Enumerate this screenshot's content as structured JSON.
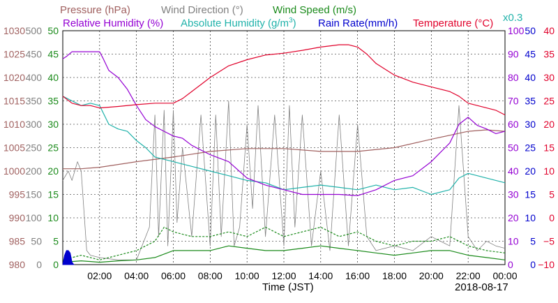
{
  "chart_data": {
    "type": "line",
    "date": "2018-08-17",
    "x_label": "Time (JST)",
    "x_range": [
      "00:00",
      "24:00"
    ],
    "x_ticks": [
      "02:00",
      "04:00",
      "06:00",
      "08:00",
      "10:00",
      "12:00",
      "14:00",
      "16:00",
      "18:00",
      "20:00",
      "22:00",
      "00:00"
    ],
    "grid": true,
    "axes": {
      "pressure": {
        "label": "Pressure (hPa)",
        "range": [
          980,
          1030
        ],
        "ticks": [
          "1030",
          "1025",
          "1020",
          "1015",
          "1010",
          "1005",
          "1000",
          "995",
          "990",
          "985",
          "980"
        ],
        "color": "#a0605f"
      },
      "wind_direction": {
        "label": "Wind Direction (°)",
        "range": [
          0,
          500
        ],
        "ticks": [
          "500",
          "450",
          "400",
          "350",
          "300",
          "250",
          "200",
          "150",
          "100",
          "50",
          "0"
        ],
        "color": "#808080"
      },
      "wind_speed": {
        "label": "Wind Speed (m/s)",
        "range": [
          0,
          50
        ],
        "ticks": [
          "50",
          "45",
          "40",
          "35",
          "30",
          "25",
          "20",
          "15",
          "10",
          "5",
          "0"
        ],
        "color": "#1a8a1a"
      },
      "humidity": {
        "label": "Relative Humidity (%)",
        "range": [
          0,
          100
        ],
        "ticks": [
          "100",
          "90",
          "80",
          "70",
          "60",
          "50",
          "40",
          "30",
          "20",
          "10",
          "0"
        ],
        "color": "#9400d3"
      },
      "abs_humidity": {
        "label": "Absolute Humidity (g/m",
        "superscript": "3",
        "close": ")",
        "scale_note": "x0.3",
        "color": "#20b2aa"
      },
      "rain_rate": {
        "label": "Rain Rate(mm/h)",
        "range": [
          0,
          50
        ],
        "ticks": [
          "50",
          "45",
          "40",
          "35",
          "30",
          "25",
          "20",
          "15",
          "10",
          "5",
          "0"
        ],
        "color": "#0000cd"
      },
      "temperature": {
        "label": "Temperature (°C)",
        "range": [
          -10,
          40
        ],
        "ticks": [
          "40",
          "35",
          "30",
          "25",
          "20",
          "15",
          "10",
          "5",
          "0",
          "−5",
          "−10"
        ],
        "color": "#e0002a"
      }
    },
    "series": [
      {
        "name": "Temperature (°C)",
        "key": "temperature",
        "axis": "temperature",
        "color": "#e0002a",
        "x": [
          0,
          0.5,
          1,
          1.5,
          2,
          3,
          4,
          5,
          6,
          6.5,
          7,
          7.5,
          8,
          9,
          10,
          11,
          12,
          13,
          14,
          15,
          15.5,
          16,
          16.5,
          17,
          18,
          19,
          20,
          21,
          21.5,
          22,
          22.5,
          23,
          23.5,
          24
        ],
        "y": [
          26,
          24.5,
          24,
          24,
          23.5,
          23.8,
          24.2,
          24.5,
          24.5,
          25.5,
          27,
          28.5,
          30,
          32.5,
          33.8,
          34.8,
          35.2,
          35.8,
          36.5,
          37,
          37,
          36.5,
          35,
          33,
          30.5,
          29,
          28,
          27,
          26,
          24.5,
          24,
          23.5,
          23,
          22
        ]
      },
      {
        "name": "Relative Humidity (%)",
        "key": "humidity",
        "axis": "humidity",
        "color": "#9400d3",
        "x": [
          0,
          0.2,
          0.5,
          1,
          1.5,
          2,
          2.2,
          2.5,
          3,
          3.5,
          4,
          4.5,
          5,
          5.5,
          6,
          6.5,
          7,
          8,
          9,
          10,
          11,
          12,
          13,
          14,
          15,
          16,
          17,
          18,
          19,
          20,
          20.5,
          21,
          21.5,
          22,
          22.5,
          23,
          23.5,
          24
        ],
        "y": [
          88,
          89,
          91,
          91,
          91,
          91,
          88,
          83,
          80,
          75,
          68,
          62,
          59,
          57,
          55,
          54,
          51,
          47,
          44,
          37,
          34,
          32,
          30,
          30,
          30,
          29.5,
          32,
          36,
          38,
          44,
          48,
          52,
          60,
          63,
          59.5,
          58,
          56,
          57
        ]
      },
      {
        "name": "Absolute Humidity (g/m3)",
        "key": "abs_humidity",
        "axis": "humidity",
        "color": "#20b2aa",
        "x": [
          0,
          0.5,
          1,
          1.5,
          2,
          2.5,
          3,
          3.5,
          4,
          4.5,
          5,
          6,
          7,
          8,
          9,
          10,
          11,
          12,
          13,
          14,
          15,
          16,
          17,
          18,
          19,
          20,
          21,
          21.5,
          22,
          22.5,
          23,
          23.5,
          24
        ],
        "y": [
          72,
          70,
          68,
          69,
          68,
          60,
          58,
          57,
          53,
          50,
          46,
          44,
          42,
          40,
          38,
          36,
          35,
          32,
          33,
          34,
          33,
          32,
          34,
          32,
          33,
          30,
          32,
          37,
          39,
          38,
          37,
          36,
          35
        ]
      },
      {
        "name": "Pressure (hPa)",
        "key": "pressure",
        "axis": "pressure",
        "color": "#a0605f",
        "x": [
          0,
          1,
          2,
          4,
          6,
          8,
          10,
          12,
          14,
          16,
          18,
          20,
          22,
          23,
          24
        ],
        "y": [
          1000.5,
          1000.5,
          1000.8,
          1002,
          1003,
          1004.2,
          1004.8,
          1004.8,
          1004.2,
          1004.2,
          1005,
          1006.8,
          1008.5,
          1008.8,
          1008.5
        ]
      },
      {
        "name": "Wind Direction (°)",
        "key": "wind_direction",
        "axis": "wind_direction",
        "color": "#808080",
        "x": [
          0,
          0.3,
          0.5,
          0.8,
          1,
          1.3,
          1.5,
          2,
          3,
          4,
          4.7,
          5,
          5.2,
          5.5,
          5.7,
          6,
          6.2,
          6.5,
          7,
          7.5,
          8,
          8.3,
          8.6,
          9,
          9.3,
          9.6,
          10,
          10.3,
          10.6,
          11,
          11.5,
          12,
          12.3,
          12.6,
          13,
          13.5,
          14,
          14.5,
          15,
          15.5,
          16,
          16.5,
          17,
          18,
          19,
          20,
          21,
          21.5,
          22,
          22.5,
          23,
          23.5,
          24
        ],
        "y": [
          180,
          200,
          180,
          220,
          200,
          30,
          20,
          15,
          10,
          10,
          80,
          320,
          60,
          330,
          40,
          330,
          90,
          250,
          60,
          320,
          40,
          320,
          60,
          350,
          40,
          80,
          300,
          120,
          340,
          60,
          320,
          40,
          340,
          80,
          320,
          40,
          200,
          30,
          320,
          40,
          300,
          60,
          30,
          40,
          30,
          60,
          40,
          340,
          60,
          30,
          50,
          40,
          35
        ]
      },
      {
        "name": "Wind Speed (m/s)",
        "key": "wind_speed",
        "axis": "wind_speed",
        "color": "#1a8a1a",
        "x": [
          0,
          1,
          2,
          3,
          4,
          5,
          6,
          7,
          8,
          9,
          10,
          11,
          12,
          13,
          14,
          15,
          16,
          17,
          18,
          19,
          20,
          21,
          22,
          23,
          24
        ],
        "y": [
          0.5,
          0.8,
          0.5,
          0.8,
          1,
          1.5,
          3,
          3,
          3,
          4,
          3.5,
          3,
          3,
          3.5,
          4,
          3.5,
          3,
          2.5,
          2,
          2.5,
          3,
          3,
          2,
          1.5,
          1
        ]
      },
      {
        "name": "Wind Speed gust (m/s)",
        "key": "wind_gust",
        "axis": "wind_speed",
        "color": "#1a8a1a",
        "dashed": true,
        "x": [
          0,
          1,
          2,
          3,
          4,
          5,
          5.5,
          6,
          7,
          8,
          9,
          10,
          11,
          12,
          13,
          14,
          15,
          16,
          17,
          18,
          19,
          20,
          21,
          22,
          23,
          24
        ],
        "y": [
          1,
          2,
          1,
          2,
          3,
          5,
          8,
          7,
          6,
          6,
          7,
          6,
          8,
          6,
          7,
          8,
          6,
          7,
          5,
          4,
          5,
          5,
          6,
          4,
          3,
          2.5
        ]
      },
      {
        "name": "Rain Rate(mm/h)",
        "key": "rain_rate",
        "axis": "rain_rate",
        "color": "#0000cd",
        "x": [
          0,
          0.1,
          0.2,
          0.3,
          0.4,
          0.5,
          0.6
        ],
        "y": [
          0,
          2,
          3,
          3,
          2.5,
          0.5,
          0
        ]
      }
    ]
  }
}
